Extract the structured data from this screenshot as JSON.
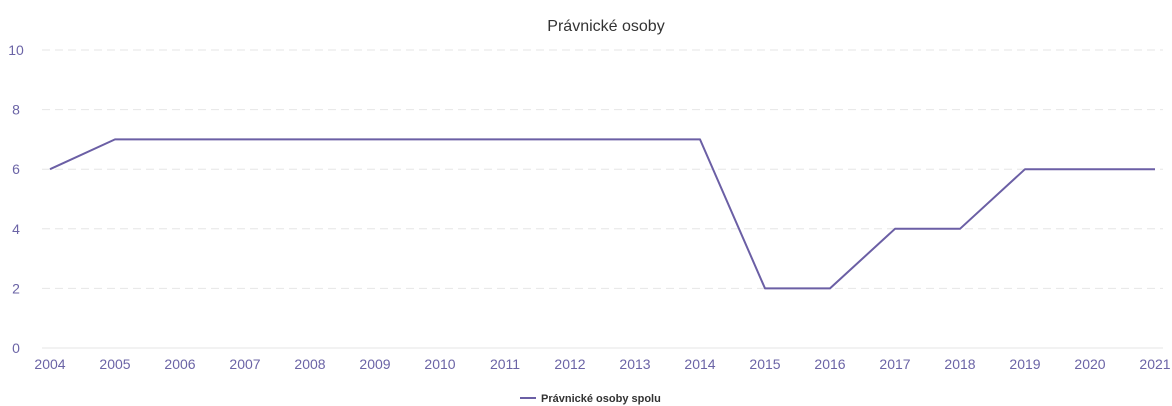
{
  "chart_data": {
    "type": "line",
    "title": "Právnické osoby",
    "xlabel": "",
    "ylabel": "",
    "x": [
      "2004",
      "2005",
      "2006",
      "2007",
      "2008",
      "2009",
      "2010",
      "2011",
      "2012",
      "2013",
      "2014",
      "2015",
      "2016",
      "2017",
      "2018",
      "2019",
      "2020",
      "2021"
    ],
    "series": [
      {
        "name": "Právnické osoby spolu",
        "values": [
          6,
          7,
          7,
          7,
          7,
          7,
          7,
          7,
          7,
          7,
          7,
          2,
          2,
          4,
          4,
          6,
          6,
          6
        ],
        "color": "#6b5fa5"
      }
    ],
    "ylim": [
      0,
      10
    ],
    "yticks": [
      "0",
      "2",
      "4",
      "6",
      "8",
      "10"
    ],
    "grid": true,
    "legend_position": "bottom-center",
    "colors": {
      "tick_text": "#6b64a6",
      "grid": "#e6e6e6",
      "title": "#333333"
    }
  }
}
